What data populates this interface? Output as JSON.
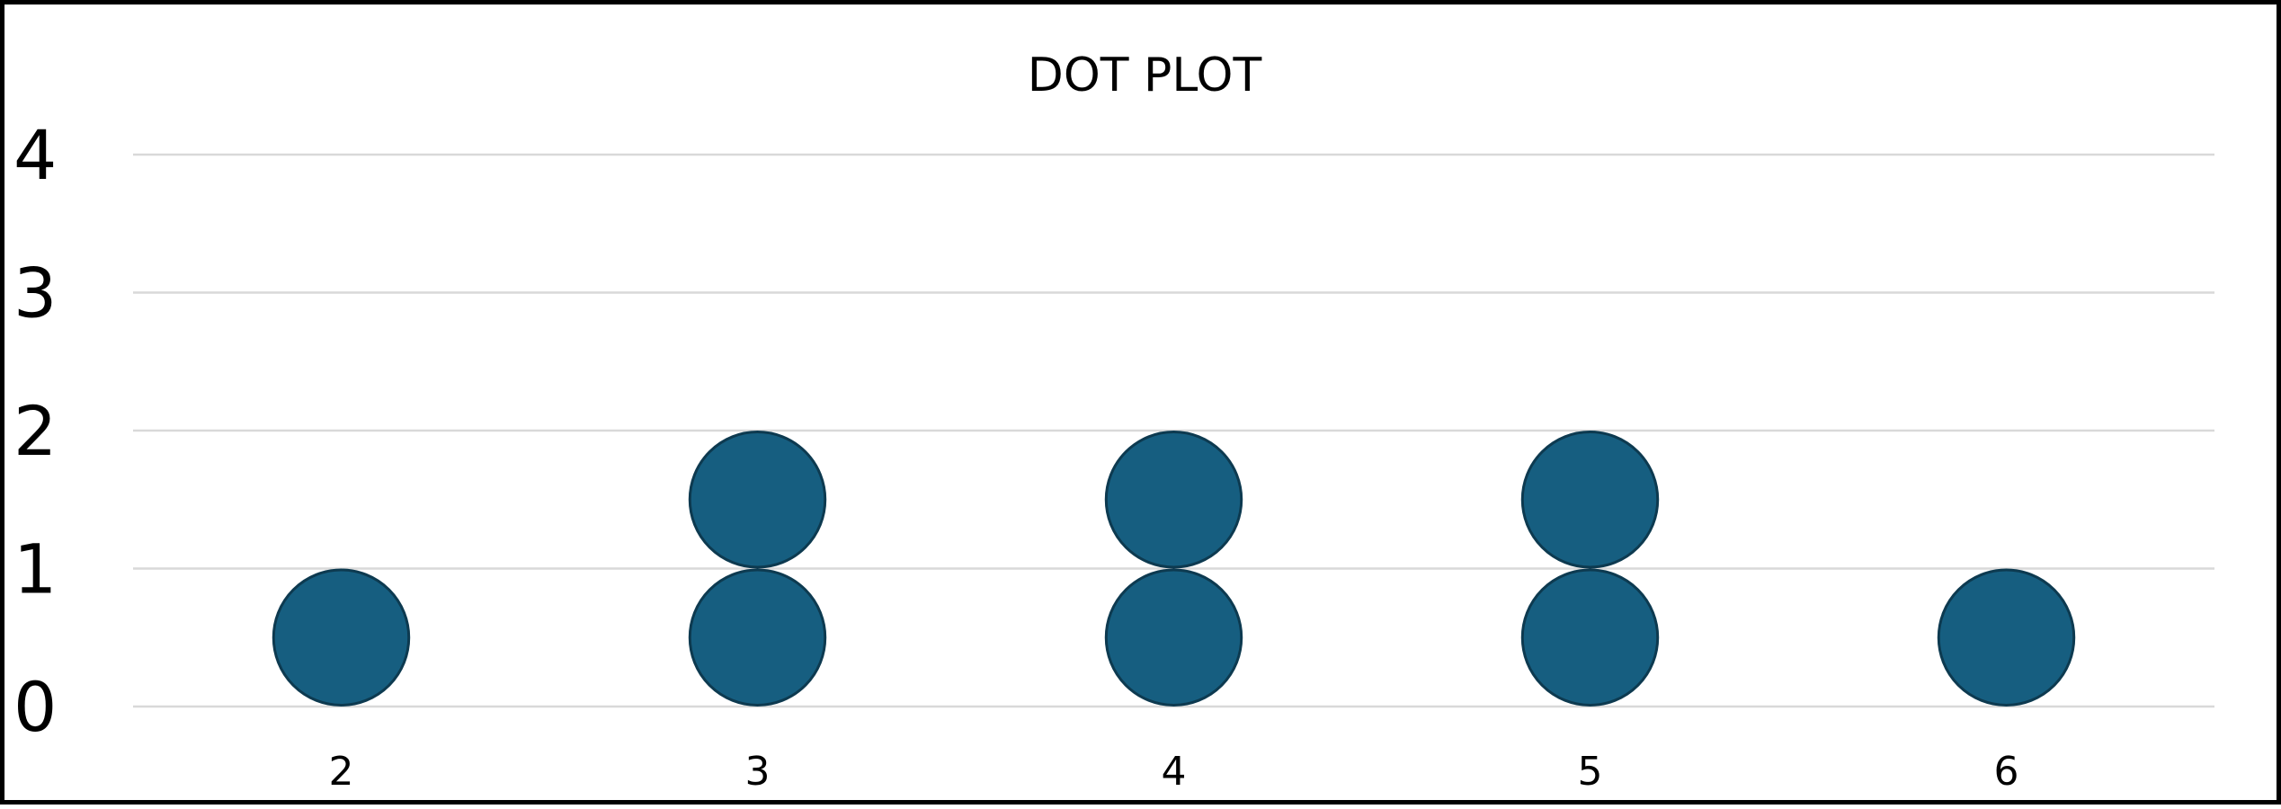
{
  "chart_data": {
    "type": "scatter",
    "title": "DOT PLOT",
    "xlabel": "",
    "ylabel": "",
    "x_ticks": [
      "2",
      "3",
      "4",
      "5",
      "6"
    ],
    "y_ticks": [
      "0",
      "1",
      "2",
      "3",
      "4"
    ],
    "ylim": [
      0,
      4
    ],
    "grid": true,
    "legend": "none",
    "categories": [
      "2",
      "3",
      "4",
      "5",
      "6"
    ],
    "counts": [
      1,
      2,
      2,
      2,
      1
    ],
    "points": [
      {
        "x": "2",
        "y": 0.5
      },
      {
        "x": "3",
        "y": 0.5
      },
      {
        "x": "3",
        "y": 1.5
      },
      {
        "x": "4",
        "y": 0.5
      },
      {
        "x": "4",
        "y": 1.5
      },
      {
        "x": "5",
        "y": 0.5
      },
      {
        "x": "5",
        "y": 1.5
      },
      {
        "x": "6",
        "y": 0.5
      }
    ],
    "colors": {
      "dot_fill": "#165e80",
      "dot_stroke": "#0d3a50",
      "gridline": "#d9d9d9",
      "border": "#000000"
    }
  }
}
